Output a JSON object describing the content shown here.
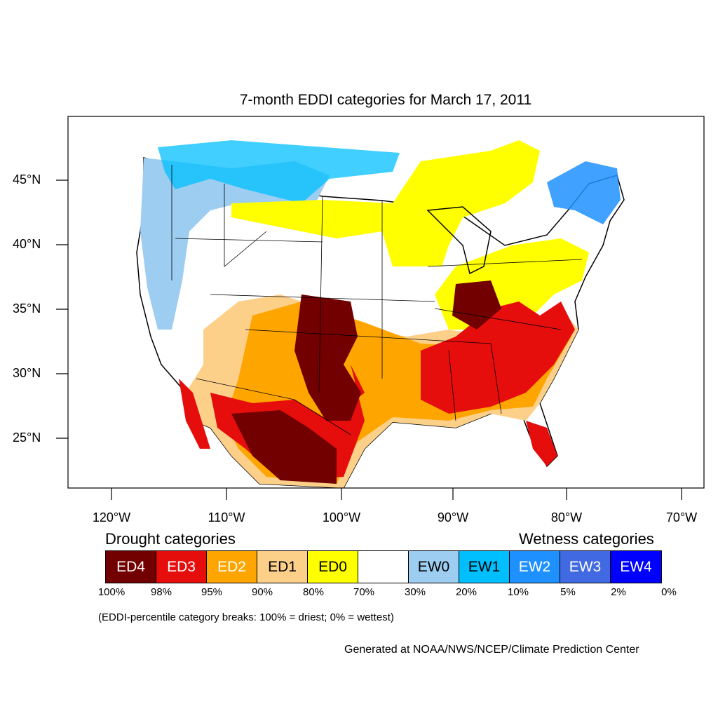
{
  "title": "7-month EDDI categories for March 17, 2011",
  "lat_ticks": [
    "45°N",
    "40°N",
    "35°N",
    "30°N",
    "25°N"
  ],
  "lon_ticks": [
    "120°W",
    "110°W",
    "100°W",
    "90°W",
    "80°W",
    "70°W"
  ],
  "legend": {
    "drought_label": "Drought categories",
    "wetness_label": "Wetness categories",
    "categories": [
      {
        "label": "ED4",
        "color": "#720000",
        "text_color": "#ffffff"
      },
      {
        "label": "ED3",
        "color": "#e60d0d",
        "text_color": "#ffffff"
      },
      {
        "label": "ED2",
        "color": "#ffa500",
        "text_color": "#ffffff"
      },
      {
        "label": "ED1",
        "color": "#fdd08a",
        "text_color": "#000000"
      },
      {
        "label": "ED0",
        "color": "#ffff00",
        "text_color": "#000000"
      },
      {
        "label": "",
        "color": "#ffffff",
        "text_color": "#000000"
      },
      {
        "label": "EW0",
        "color": "#9dcdf0",
        "text_color": "#000000"
      },
      {
        "label": "EW1",
        "color": "#00bfff",
        "text_color": "#000000"
      },
      {
        "label": "EW2",
        "color": "#1e90ff",
        "text_color": "#ffffff"
      },
      {
        "label": "EW3",
        "color": "#4169e1",
        "text_color": "#ffffff"
      },
      {
        "label": "EW4",
        "color": "#0000ff",
        "text_color": "#ffffff"
      }
    ],
    "breaks": [
      "100%",
      "98%",
      "95%",
      "90%",
      "80%",
      "70%",
      "30%",
      "20%",
      "10%",
      "5%",
      "2%",
      "0%"
    ]
  },
  "note": "(EDDI-percentile category breaks: 100% = driest; 0% = wettest)",
  "credit": "Generated at NOAA/NWS/NCEP/Climate Prediction Center"
}
